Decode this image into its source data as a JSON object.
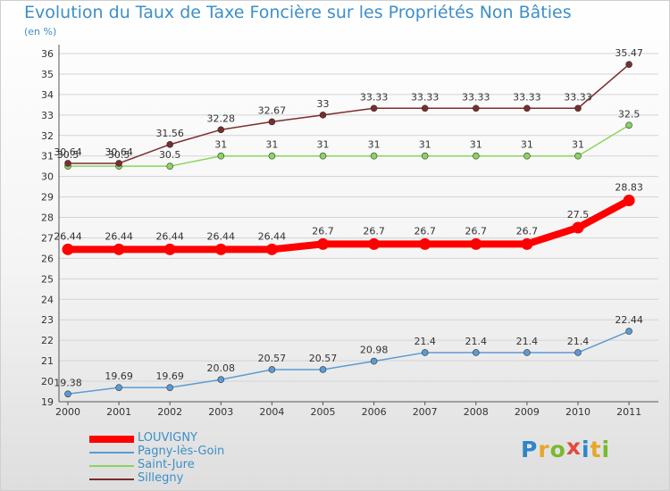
{
  "title": "Evolution du Taux de Taxe Foncière sur les Propriétés Non Bâties",
  "unit_label": "(en %)",
  "logo": {
    "text": "Proxiti",
    "letters": [
      {
        "char": "P",
        "color": "#2e86c8"
      },
      {
        "char": "r",
        "color": "#e7a62c"
      },
      {
        "char": "o",
        "color": "#79b92d"
      },
      {
        "char": "x",
        "color": "#e34b3c"
      },
      {
        "char": "i",
        "color": "#2e86c8"
      },
      {
        "char": "t",
        "color": "#e7a62c"
      },
      {
        "char": "i",
        "color": "#79b92d"
      }
    ]
  },
  "chart_data": {
    "type": "line",
    "x": [
      "2000",
      "2001",
      "2002",
      "2003",
      "2004",
      "2005",
      "2006",
      "2007",
      "2008",
      "2009",
      "2010",
      "2011"
    ],
    "ylim": [
      19,
      36
    ],
    "yticks": [
      19,
      20,
      21,
      22,
      23,
      24,
      25,
      26,
      27,
      28,
      29,
      30,
      31,
      32,
      33,
      34,
      35,
      36
    ],
    "grid": "horizontal",
    "legend_position": "bottom-left",
    "series": [
      {
        "name": "LOUVIGNY",
        "color": "#ff0000",
        "emphasis": true,
        "values": [
          26.44,
          26.44,
          26.44,
          26.44,
          26.44,
          26.7,
          26.7,
          26.7,
          26.7,
          26.7,
          27.5,
          28.83
        ],
        "labels": [
          "26.44",
          "26.44",
          "26.44",
          "26.44",
          "26.44",
          "26.7",
          "26.7",
          "26.7",
          "26.7",
          "26.7",
          "27.5",
          "28.83"
        ]
      },
      {
        "name": "Pagny-lès-Goin",
        "color": "#5b9bd5",
        "emphasis": false,
        "values": [
          19.38,
          19.69,
          19.69,
          20.08,
          20.57,
          20.57,
          20.98,
          21.4,
          21.4,
          21.4,
          21.4,
          22.44
        ],
        "labels": [
          "19.38",
          "19.69",
          "19.69",
          "20.08",
          "20.57",
          "20.57",
          "20.98",
          "21.4",
          "21.4",
          "21.4",
          "21.4",
          "22.44"
        ]
      },
      {
        "name": "Saint-Jure",
        "color": "#8bd45e",
        "emphasis": false,
        "values": [
          30.5,
          30.5,
          30.5,
          31,
          31,
          31,
          31,
          31,
          31,
          31,
          31,
          32.5
        ],
        "labels": [
          "30.5",
          "30.5",
          "30.5",
          "31",
          "31",
          "31",
          "31",
          "31",
          "31",
          "31",
          "31",
          "32.5"
        ]
      },
      {
        "name": "Sillegny",
        "color": "#7b2d2d",
        "emphasis": false,
        "values": [
          30.64,
          30.64,
          31.56,
          32.28,
          32.67,
          33,
          33.33,
          33.33,
          33.33,
          33.33,
          33.33,
          35.47
        ],
        "labels": [
          "30.64",
          "30.64",
          "31.56",
          "32.28",
          "32.67",
          "33",
          "33.33",
          "33.33",
          "33.33",
          "33.33",
          "33.33",
          "35.47"
        ]
      }
    ]
  }
}
